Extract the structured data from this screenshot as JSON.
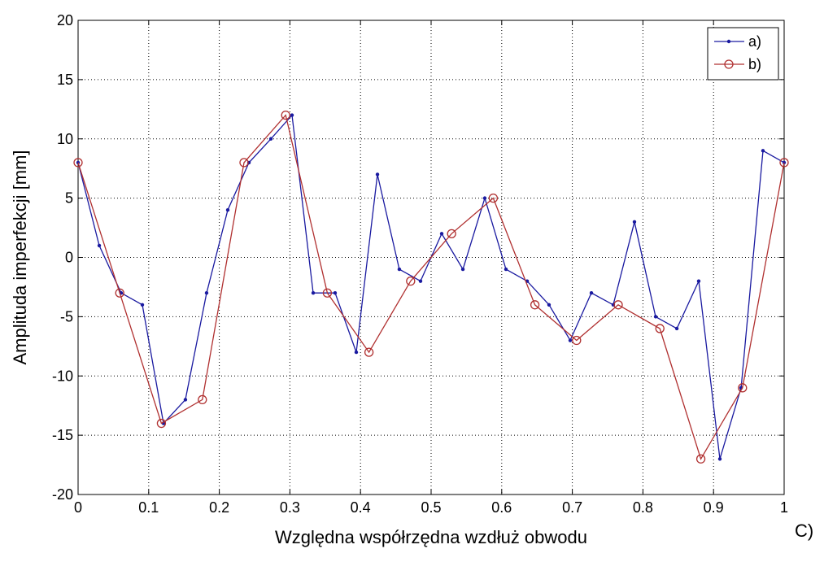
{
  "chart_data": {
    "type": "line",
    "xlabel": "Względna współrzędna wzdłuż obwodu",
    "ylabel": "Amplituda imperfekcji [mm]",
    "xlim": [
      0,
      1
    ],
    "ylim": [
      -20,
      20
    ],
    "xticks": [
      "0",
      "0.1",
      "0.2",
      "0.3",
      "0.4",
      "0.5",
      "0.6",
      "0.7",
      "0.8",
      "0.9",
      "1"
    ],
    "yticks": [
      "20",
      "15",
      "10",
      "5",
      "0",
      "-5",
      "-10",
      "-15",
      "-20"
    ],
    "grid": true,
    "legend_position": "top-right",
    "series": [
      {
        "name": "a)",
        "color": "#1a1aa0",
        "marker": "dot",
        "x": [
          0,
          0.03,
          0.061,
          0.091,
          0.121,
          0.152,
          0.182,
          0.212,
          0.242,
          0.273,
          0.303,
          0.333,
          0.364,
          0.394,
          0.424,
          0.455,
          0.485,
          0.515,
          0.545,
          0.576,
          0.606,
          0.636,
          0.667,
          0.697,
          0.727,
          0.758,
          0.788,
          0.818,
          0.848,
          0.879,
          0.909,
          0.939,
          0.97,
          1.0
        ],
        "y": [
          8,
          1,
          -3,
          -4,
          -14,
          -12,
          -3,
          4,
          8,
          10,
          12,
          -3,
          -3,
          -8,
          7,
          -1,
          -2,
          2,
          -1,
          5,
          -1,
          -2,
          -4,
          -7,
          -3,
          -4,
          3,
          -5,
          -6,
          -2,
          -17,
          -11,
          9,
          8
        ]
      },
      {
        "name": "b)",
        "color": "#b03030",
        "marker": "circle",
        "x": [
          0,
          0.059,
          0.118,
          0.176,
          0.235,
          0.294,
          0.353,
          0.412,
          0.471,
          0.529,
          0.588,
          0.647,
          0.706,
          0.765,
          0.824,
          0.882,
          0.941,
          1.0
        ],
        "y": [
          8,
          -3,
          -14,
          -12,
          8,
          12,
          -3,
          -8,
          -2,
          2,
          5,
          -4,
          -7,
          -4,
          -6,
          -17,
          -11,
          8
        ]
      }
    ]
  },
  "corner_label": "C)"
}
